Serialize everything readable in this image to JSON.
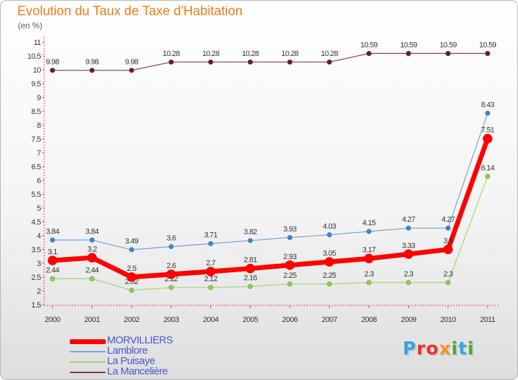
{
  "title": "Evolution du Taux de Taxe d'Habitation",
  "unit_label": "(en %)",
  "logo_text": "Proxiti",
  "chart_data": {
    "type": "line",
    "title": "Evolution du Taux de Taxe d'Habitation",
    "ylabel": "(en %)",
    "x": [
      "2000",
      "2001",
      "2002",
      "2003",
      "2004",
      "2005",
      "2006",
      "2007",
      "2008",
      "2009",
      "2010",
      "2011"
    ],
    "ylim": [
      1.5,
      11
    ],
    "y_ticks": [
      1.5,
      2,
      2.5,
      3,
      3.5,
      4,
      4.5,
      5,
      5.5,
      6,
      6.5,
      7,
      7.5,
      8,
      8.5,
      9,
      9.5,
      10,
      10.5,
      11
    ],
    "y_tick_labels": [
      "1.5",
      "2",
      "2.5",
      "3",
      "3.5",
      "4",
      "4.5",
      "5",
      "5.5",
      "6",
      "6.5",
      "7",
      "7.5",
      "8",
      "8.5",
      "9",
      "9.5",
      "10",
      "10.5",
      "11"
    ],
    "grid": false,
    "legend": "bottom-left",
    "series": [
      {
        "name": "MORVILLIERS",
        "color": "#ff0000",
        "values": [
          3.1,
          3.2,
          2.5,
          2.6,
          2.7,
          2.81,
          2.93,
          3.05,
          3.17,
          3.33,
          3.5,
          7.51
        ],
        "labels": [
          "3.1",
          "3.2",
          "2.5",
          "2.6",
          "2.7",
          "2.81",
          "2.93",
          "3.05",
          "3.17",
          "3.33",
          "3.5",
          "7.51"
        ]
      },
      {
        "name": "Lamblore",
        "color": "#6fa0cf",
        "values": [
          3.84,
          3.84,
          3.49,
          3.6,
          3.71,
          3.82,
          3.93,
          4.03,
          4.15,
          4.27,
          4.27,
          8.43
        ],
        "labels": [
          "3.84",
          "3.84",
          "3.49",
          "3.6",
          "3.71",
          "3.82",
          "3.93",
          "4.03",
          "4.15",
          "4.27",
          "4.27",
          "8.43"
        ]
      },
      {
        "name": "La Puisaye",
        "color": "#9fd56e",
        "values": [
          2.44,
          2.44,
          2.02,
          2.12,
          2.12,
          2.16,
          2.25,
          2.25,
          2.3,
          2.3,
          2.3,
          6.14
        ],
        "labels": [
          "2.44",
          "2.44",
          "2.02",
          "2.12",
          "2.12",
          "2.16",
          "2.25",
          "2.25",
          "2.3",
          "2.3",
          "2.3",
          "6.14"
        ]
      },
      {
        "name": "La Mancelière",
        "color": "#7d3b3b",
        "values": [
          9.98,
          9.98,
          9.98,
          10.28,
          10.28,
          10.28,
          10.28,
          10.28,
          10.59,
          10.59,
          10.59,
          10.59
        ],
        "labels": [
          "9.98",
          "9.98",
          "9.98",
          "10.28",
          "10.28",
          "10.28",
          "10.28",
          "10.28",
          "10.59",
          "10.59",
          "10.59",
          "10.59"
        ]
      }
    ]
  }
}
